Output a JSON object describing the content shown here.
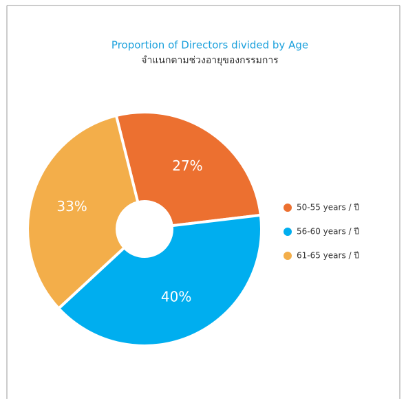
{
  "chart_data": {
    "type": "pie",
    "title": "Proportion of Directors divided by Age",
    "subtitle": "จำแนกตามช่วงอายุของกรรมการ",
    "categories": [
      "50-55 years / ปี",
      "56-60 years / ปี",
      "61-65 years / ปี"
    ],
    "values": [
      27,
      40,
      33
    ],
    "value_labels": [
      "27%",
      "40%",
      "33%"
    ],
    "colors": [
      "#ec7030",
      "#00aeef",
      "#f3ae4a"
    ],
    "legend": "right"
  }
}
